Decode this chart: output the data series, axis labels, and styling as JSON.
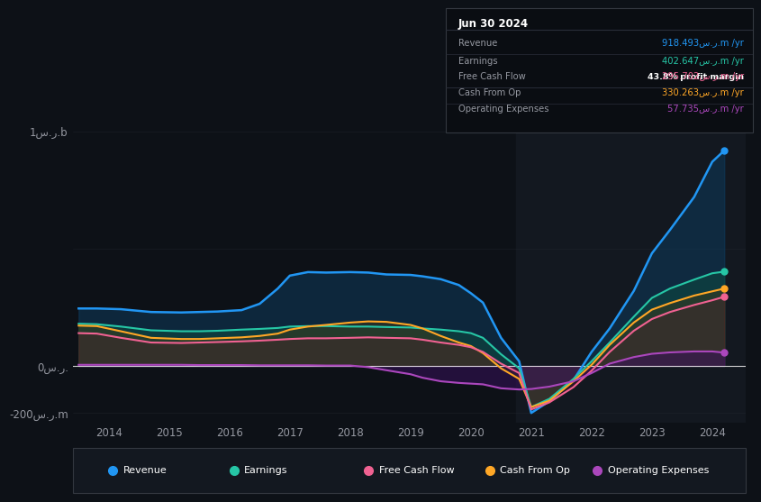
{
  "bg_color": "#0d1117",
  "plot_bg_color": "#0d1117",
  "grid_color": "#2a2e39",
  "text_color": "#9598a1",
  "title_color": "#ffffff",
  "ylabel_top": "1س.ر.b",
  "ylabel_bottom": "-200س.ر.m",
  "ylabel_mid": "0س.ر.",
  "x_ticks": [
    2014,
    2015,
    2016,
    2017,
    2018,
    2019,
    2020,
    2021,
    2022,
    2023,
    2024
  ],
  "colors": {
    "revenue": "#2196f3",
    "earnings": "#26c6a6",
    "free_cash_flow": "#f06292",
    "cash_from_op": "#ffa726",
    "operating_expenses": "#ab47bc"
  },
  "info_box": {
    "date": "Jun 30 2024",
    "revenue_label": "Revenue",
    "revenue_value": "918.493",
    "revenue_unit": "س.ر.m /yr",
    "earnings_label": "Earnings",
    "earnings_value": "402.647",
    "earnings_unit": "س.ر.m /yr",
    "margin_text": "43.8% profit margin",
    "fcf_label": "Free Cash Flow",
    "fcf_value": "295.702",
    "fcf_unit": "س.ر.m /yr",
    "cashop_label": "Cash From Op",
    "cashop_value": "330.263",
    "cashop_unit": "س.ر.m /yr",
    "opex_label": "Operating Expenses",
    "opex_value": "57.735",
    "opex_unit": "س.ر.m /yr"
  },
  "legend": [
    {
      "label": "Revenue",
      "color": "#2196f3"
    },
    {
      "label": "Earnings",
      "color": "#26c6a6"
    },
    {
      "label": "Free Cash Flow",
      "color": "#f06292"
    },
    {
      "label": "Cash From Op",
      "color": "#ffa726"
    },
    {
      "label": "Operating Expenses",
      "color": "#ab47bc"
    }
  ],
  "series": {
    "years": [
      2013.5,
      2013.8,
      2014.2,
      2014.7,
      2015.2,
      2015.5,
      2015.8,
      2016.2,
      2016.5,
      2016.8,
      2017.0,
      2017.3,
      2017.6,
      2018.0,
      2018.3,
      2018.6,
      2019.0,
      2019.2,
      2019.5,
      2019.8,
      2020.0,
      2020.2,
      2020.5,
      2020.8,
      2021.0,
      2021.3,
      2021.7,
      2022.0,
      2022.3,
      2022.7,
      2023.0,
      2023.3,
      2023.7,
      2024.0,
      2024.2
    ],
    "revenue": [
      245,
      245,
      242,
      230,
      228,
      230,
      232,
      238,
      265,
      330,
      385,
      400,
      398,
      400,
      398,
      390,
      388,
      382,
      370,
      345,
      310,
      270,
      120,
      20,
      -200,
      -150,
      -60,
      60,
      160,
      320,
      480,
      580,
      720,
      870,
      918
    ],
    "earnings": [
      180,
      178,
      168,
      152,
      148,
      148,
      150,
      155,
      158,
      162,
      168,
      170,
      170,
      168,
      168,
      166,
      164,
      160,
      155,
      148,
      140,
      120,
      50,
      -10,
      -175,
      -140,
      -55,
      20,
      100,
      210,
      290,
      330,
      368,
      395,
      402
    ],
    "free_cash_flow": [
      140,
      138,
      120,
      100,
      98,
      100,
      102,
      105,
      108,
      112,
      115,
      118,
      118,
      120,
      122,
      120,
      118,
      112,
      100,
      90,
      80,
      60,
      10,
      -30,
      -185,
      -155,
      -90,
      -20,
      60,
      150,
      200,
      230,
      260,
      280,
      295
    ],
    "cash_from_op": [
      172,
      170,
      148,
      120,
      115,
      115,
      118,
      122,
      128,
      138,
      155,
      168,
      175,
      185,
      190,
      188,
      175,
      160,
      128,
      100,
      85,
      55,
      -10,
      -55,
      -175,
      -148,
      -65,
      5,
      90,
      185,
      240,
      268,
      300,
      318,
      330
    ],
    "operating_expenses": [
      5,
      5,
      5,
      5,
      5,
      4,
      4,
      4,
      3,
      3,
      3,
      3,
      2,
      2,
      -5,
      -18,
      -35,
      -50,
      -65,
      -72,
      -75,
      -78,
      -95,
      -100,
      -98,
      -88,
      -65,
      -30,
      10,
      38,
      52,
      58,
      62,
      62,
      57
    ]
  }
}
